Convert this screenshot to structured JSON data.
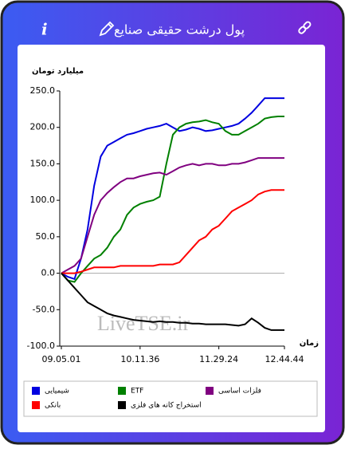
{
  "header": {
    "title": "پول درشت حقیقی صنایع"
  },
  "chart_data": {
    "type": "line",
    "y_label": "میلیارد تومان",
    "x_label": "زمان",
    "watermark": "LiveTSE.ir",
    "categories": [
      "09.05.01",
      null,
      null,
      null,
      null,
      null,
      null,
      null,
      null,
      null,
      null,
      null,
      "10.11.36",
      null,
      null,
      null,
      null,
      null,
      null,
      null,
      null,
      null,
      null,
      null,
      "11.29.24",
      null,
      null,
      null,
      null,
      null,
      null,
      null,
      null,
      null,
      "12.44.44"
    ],
    "ylim": [
      -100,
      250
    ],
    "yticks": [
      {
        "value": 250,
        "label": "250.0"
      },
      {
        "value": 200,
        "label": "200.0"
      },
      {
        "value": 150,
        "label": "150.0"
      },
      {
        "value": 100,
        "label": "100.0"
      },
      {
        "value": 50,
        "label": "50.0"
      },
      {
        "value": 0,
        "label": "0.0"
      },
      {
        "value": -50,
        "label": "-50.0"
      },
      {
        "value": -100,
        "label": "-100.0"
      }
    ],
    "series": [
      {
        "name": "شیمیایی",
        "color": "#0000e0",
        "values": [
          0,
          -5,
          -8,
          20,
          60,
          120,
          160,
          175,
          180,
          185,
          190,
          192,
          195,
          198,
          200,
          202,
          205,
          200,
          195,
          197,
          200,
          198,
          195,
          196,
          198,
          200,
          202,
          205,
          212,
          220,
          230,
          240,
          240,
          240,
          240
        ]
      },
      {
        "name": "ETF",
        "color": "#008000",
        "values": [
          0,
          -10,
          -12,
          0,
          10,
          20,
          25,
          35,
          50,
          60,
          80,
          90,
          95,
          98,
          100,
          105,
          150,
          190,
          200,
          205,
          207,
          208,
          210,
          207,
          205,
          195,
          190,
          190,
          195,
          200,
          205,
          212,
          214,
          215,
          215
        ]
      },
      {
        "name": "فلزات اساسی",
        "color": "#800080",
        "values": [
          0,
          5,
          10,
          20,
          50,
          80,
          100,
          110,
          118,
          125,
          130,
          130,
          133,
          135,
          137,
          138,
          135,
          140,
          145,
          148,
          150,
          148,
          150,
          150,
          148,
          148,
          150,
          150,
          152,
          155,
          158,
          158,
          158,
          158,
          158
        ]
      },
      {
        "name": "بانکی",
        "color": "#ff0000",
        "values": [
          0,
          0,
          0,
          2,
          5,
          8,
          8,
          8,
          8,
          10,
          10,
          10,
          10,
          10,
          10,
          12,
          12,
          12,
          15,
          25,
          35,
          45,
          50,
          60,
          65,
          75,
          85,
          90,
          95,
          100,
          108,
          112,
          114,
          114,
          114
        ]
      },
      {
        "name": "استخراج کانه های فلزی",
        "color": "#000000",
        "values": [
          0,
          -10,
          -20,
          -30,
          -40,
          -45,
          -50,
          -55,
          -58,
          -60,
          -62,
          -64,
          -65,
          -66,
          -67,
          -66,
          -67,
          -67,
          -68,
          -68,
          -69,
          -69,
          -70,
          -70,
          -70,
          -70,
          -71,
          -72,
          -70,
          -62,
          -68,
          -75,
          -78,
          -78,
          -78
        ]
      }
    ]
  }
}
